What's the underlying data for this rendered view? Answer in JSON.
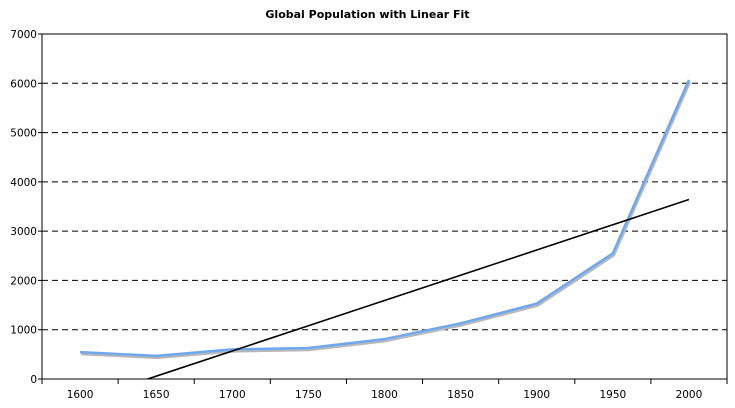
{
  "chart_data": {
    "type": "line",
    "title": "Global Population with Linear Fit",
    "xlabel": "",
    "ylabel": "",
    "categories": [
      "1600",
      "1650",
      "1700",
      "1750",
      "1800",
      "1850",
      "1900",
      "1950",
      "2000"
    ],
    "series": [
      {
        "name": "Population",
        "values": [
          545,
          470,
          600,
          630,
          810,
          1130,
          1530,
          2550,
          6070
        ],
        "color": "#6fa8f0"
      },
      {
        "name": "Linear Fit",
        "values": [
          -455,
          57,
          569,
          1081,
          1593,
          2105,
          2617,
          3129,
          3641
        ],
        "color": "#000000"
      }
    ],
    "ylim": [
      0,
      7000
    ],
    "yticks": [
      0,
      1000,
      2000,
      3000,
      4000,
      5000,
      6000,
      7000
    ],
    "grid": "horizontal dashed",
    "legend": "none"
  }
}
